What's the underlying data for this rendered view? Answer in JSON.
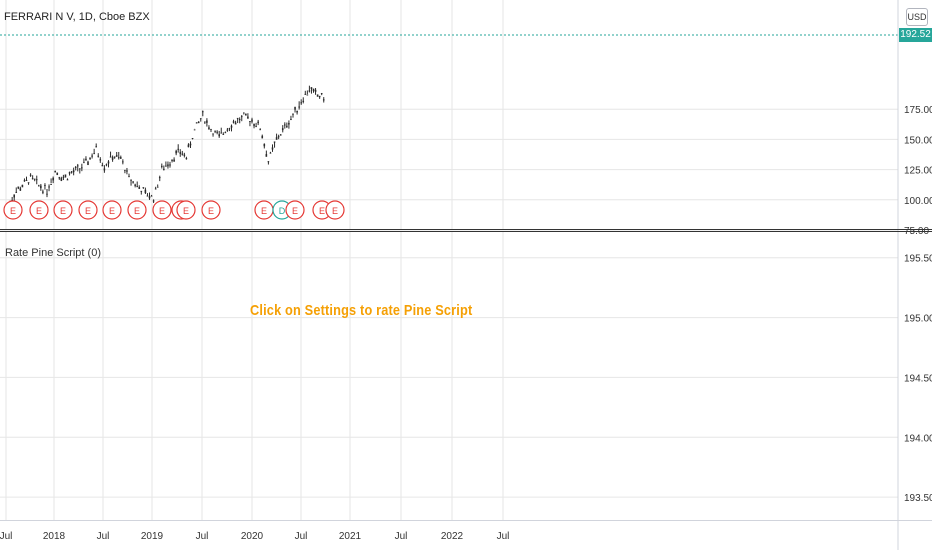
{
  "header": {
    "symbol_title": "FERRARI N V, 1D, Cboe BZX",
    "currency": "USD",
    "last_price": "192.52"
  },
  "indicator": {
    "title": "Rate Pine Script (0)",
    "message": "Click on Settings to rate Pine Script"
  },
  "colors": {
    "grid": "#e6e6e6",
    "axis": "#d1d4dc",
    "candle": "#2a2a2a",
    "price_line": "#26a69a",
    "earnings_marker": "#e53935",
    "dividend_marker": "#26a69a",
    "message": "#f5a005"
  },
  "chart_data": [
    {
      "type": "line",
      "title": "FERRARI N V, 1D, Cboe BZX",
      "x_ticks": [
        "Jul",
        "2018",
        "Jul",
        "2019",
        "Jul",
        "2020",
        "Jul",
        "2021",
        "Jul",
        "2022",
        "Jul"
      ],
      "y_ticks": [
        "75.00",
        "100.00",
        "125.00",
        "150.00",
        "175.00"
      ],
      "ylim": [
        74,
        199
      ],
      "current_price": 192.52,
      "series": [
        {
          "x": [
            "2017-07",
            "2017-08",
            "2017-09",
            "2017-10",
            "2017-11",
            "2017-12",
            "2018-01",
            "2018-02",
            "2018-03",
            "2018-04",
            "2018-05",
            "2018-06",
            "2018-07",
            "2018-08",
            "2018-09",
            "2018-10",
            "2018-11",
            "2018-12",
            "2019-01",
            "2019-02",
            "2019-03",
            "2019-04",
            "2019-05",
            "2019-06",
            "2019-07",
            "2019-08",
            "2019-09",
            "2019-10",
            "2019-11",
            "2019-12",
            "2020-01",
            "2020-02",
            "2020-03",
            "2020-04",
            "2020-05",
            "2020-06",
            "2020-07",
            "2020-08",
            "2020-09",
            "2020-10"
          ],
          "values": [
            90,
            105,
            112,
            118,
            112,
            108,
            124,
            118,
            122,
            126,
            132,
            142,
            128,
            136,
            134,
            118,
            112,
            105,
            102,
            125,
            132,
            140,
            136,
            158,
            170,
            158,
            152,
            160,
            165,
            168,
            166,
            160,
            132,
            150,
            160,
            170,
            182,
            192,
            186,
            185
          ]
        }
      ],
      "events": [
        "E",
        "E",
        "E",
        "E",
        "E",
        "E",
        "E",
        "E",
        "E",
        "E",
        "E",
        "D",
        "E",
        "E",
        "E"
      ]
    },
    {
      "type": "line",
      "title": "Rate Pine Script (0)",
      "y_ticks": [
        "193.50",
        "194.00",
        "194.50",
        "195.00",
        "195.50"
      ],
      "ylim": [
        193.2,
        195.55
      ],
      "series": []
    }
  ]
}
